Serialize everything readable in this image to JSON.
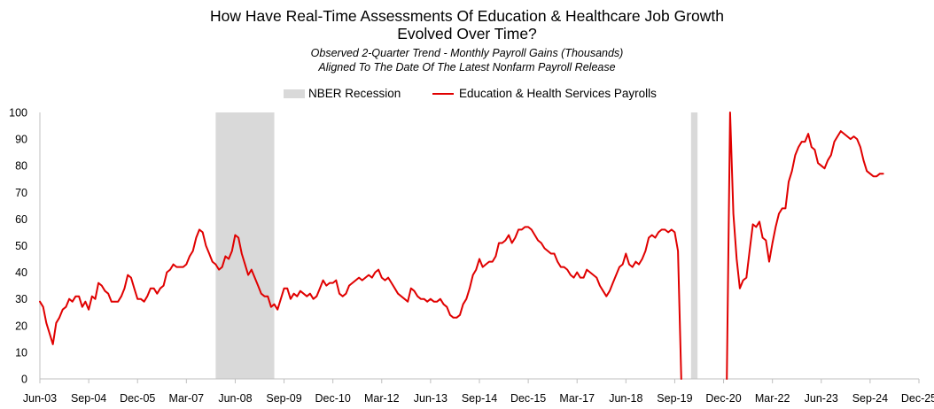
{
  "chart_data": {
    "type": "line",
    "title": [
      "How Have Real-Time Assessments Of Education & Healthcare Job Growth",
      "Evolved Over Time?"
    ],
    "subtitle": [
      "Observed 2-Quarter Trend - Monthly Payroll Gains (Thousands)",
      "Aligned To The Date Of The Latest Nonfarm Payroll Release"
    ],
    "legend": {
      "placement": "top-center",
      "items": [
        {
          "label": "NBER Recession",
          "kind": "shaded-area",
          "color": "#d9d9d9"
        },
        {
          "label": "Education & Health Services Payrolls",
          "kind": "line",
          "color": "#e00000"
        }
      ]
    },
    "y_axis": {
      "ylim": [
        0,
        100
      ],
      "ticks": [
        0,
        10,
        20,
        30,
        40,
        50,
        60,
        70,
        80,
        90,
        100
      ],
      "ylabel": ""
    },
    "x_axis": {
      "xlim": [
        "2003-06",
        "2025-12"
      ],
      "ticks": [
        {
          "date": "2003-06",
          "label": "Jun-03"
        },
        {
          "date": "2004-09",
          "label": "Sep-04"
        },
        {
          "date": "2005-12",
          "label": "Dec-05"
        },
        {
          "date": "2007-03",
          "label": "Mar-07"
        },
        {
          "date": "2008-06",
          "label": "Jun-08"
        },
        {
          "date": "2009-09",
          "label": "Sep-09"
        },
        {
          "date": "2010-12",
          "label": "Dec-10"
        },
        {
          "date": "2012-03",
          "label": "Mar-12"
        },
        {
          "date": "2013-06",
          "label": "Jun-13"
        },
        {
          "date": "2014-09",
          "label": "Sep-14"
        },
        {
          "date": "2015-12",
          "label": "Dec-15"
        },
        {
          "date": "2017-03",
          "label": "Mar-17"
        },
        {
          "date": "2018-06",
          "label": "Jun-18"
        },
        {
          "date": "2019-09",
          "label": "Sep-19"
        },
        {
          "date": "2020-12",
          "label": "Dec-20"
        },
        {
          "date": "2022-03",
          "label": "Mar-22"
        },
        {
          "date": "2023-06",
          "label": "Jun-23"
        },
        {
          "date": "2024-09",
          "label": "Sep-24"
        },
        {
          "date": "2025-12",
          "label": "Dec-25"
        }
      ],
      "xlabel": ""
    },
    "grid": false,
    "recessions": [
      {
        "start": "2007-12",
        "end": "2009-06"
      },
      {
        "start": "2020-02",
        "end": "2020-04"
      }
    ],
    "series": [
      {
        "name": "Education & Health Services Payrolls",
        "color": "#e00000",
        "points": [
          [
            "2003-06",
            29
          ],
          [
            "2003-07",
            27
          ],
          [
            "2003-08",
            21
          ],
          [
            "2003-09",
            17
          ],
          [
            "2003-10",
            13
          ],
          [
            "2003-11",
            21
          ],
          [
            "2003-12",
            23
          ],
          [
            "2004-01",
            26
          ],
          [
            "2004-02",
            27
          ],
          [
            "2004-03",
            30
          ],
          [
            "2004-04",
            29
          ],
          [
            "2004-05",
            31
          ],
          [
            "2004-06",
            31
          ],
          [
            "2004-07",
            27
          ],
          [
            "2004-08",
            29
          ],
          [
            "2004-09",
            26
          ],
          [
            "2004-10",
            31
          ],
          [
            "2004-11",
            30
          ],
          [
            "2004-12",
            36
          ],
          [
            "2005-01",
            35
          ],
          [
            "2005-02",
            33
          ],
          [
            "2005-03",
            32
          ],
          [
            "2005-04",
            29
          ],
          [
            "2005-05",
            29
          ],
          [
            "2005-06",
            29
          ],
          [
            "2005-07",
            31
          ],
          [
            "2005-08",
            34
          ],
          [
            "2005-09",
            39
          ],
          [
            "2005-10",
            38
          ],
          [
            "2005-11",
            34
          ],
          [
            "2005-12",
            30
          ],
          [
            "2006-01",
            30
          ],
          [
            "2006-02",
            29
          ],
          [
            "2006-03",
            31
          ],
          [
            "2006-04",
            34
          ],
          [
            "2006-05",
            34
          ],
          [
            "2006-06",
            32
          ],
          [
            "2006-07",
            34
          ],
          [
            "2006-08",
            35
          ],
          [
            "2006-09",
            40
          ],
          [
            "2006-10",
            41
          ],
          [
            "2006-11",
            43
          ],
          [
            "2006-12",
            42
          ],
          [
            "2007-01",
            42
          ],
          [
            "2007-02",
            42
          ],
          [
            "2007-03",
            43
          ],
          [
            "2007-04",
            46
          ],
          [
            "2007-05",
            48
          ],
          [
            "2007-06",
            53
          ],
          [
            "2007-07",
            56
          ],
          [
            "2007-08",
            55
          ],
          [
            "2007-09",
            50
          ],
          [
            "2007-10",
            47
          ],
          [
            "2007-11",
            44
          ],
          [
            "2007-12",
            43
          ],
          [
            "2008-01",
            41
          ],
          [
            "2008-02",
            42
          ],
          [
            "2008-03",
            46
          ],
          [
            "2008-04",
            45
          ],
          [
            "2008-05",
            48
          ],
          [
            "2008-06",
            54
          ],
          [
            "2008-07",
            53
          ],
          [
            "2008-08",
            47
          ],
          [
            "2008-09",
            43
          ],
          [
            "2008-10",
            39
          ],
          [
            "2008-11",
            41
          ],
          [
            "2008-12",
            38
          ],
          [
            "2009-01",
            35
          ],
          [
            "2009-02",
            32
          ],
          [
            "2009-03",
            31
          ],
          [
            "2009-04",
            31
          ],
          [
            "2009-05",
            27
          ],
          [
            "2009-06",
            28
          ],
          [
            "2009-07",
            26
          ],
          [
            "2009-08",
            30
          ],
          [
            "2009-09",
            34
          ],
          [
            "2009-10",
            34
          ],
          [
            "2009-11",
            30
          ],
          [
            "2009-12",
            32
          ],
          [
            "2010-01",
            31
          ],
          [
            "2010-02",
            33
          ],
          [
            "2010-03",
            32
          ],
          [
            "2010-04",
            31
          ],
          [
            "2010-05",
            32
          ],
          [
            "2010-06",
            30
          ],
          [
            "2010-07",
            31
          ],
          [
            "2010-08",
            34
          ],
          [
            "2010-09",
            37
          ],
          [
            "2010-10",
            35
          ],
          [
            "2010-11",
            36
          ],
          [
            "2010-12",
            36
          ],
          [
            "2011-01",
            37
          ],
          [
            "2011-02",
            32
          ],
          [
            "2011-03",
            31
          ],
          [
            "2011-04",
            32
          ],
          [
            "2011-05",
            35
          ],
          [
            "2011-06",
            36
          ],
          [
            "2011-07",
            37
          ],
          [
            "2011-08",
            38
          ],
          [
            "2011-09",
            37
          ],
          [
            "2011-10",
            38
          ],
          [
            "2011-11",
            39
          ],
          [
            "2011-12",
            38
          ],
          [
            "2012-01",
            40
          ],
          [
            "2012-02",
            41
          ],
          [
            "2012-03",
            38
          ],
          [
            "2012-04",
            37
          ],
          [
            "2012-05",
            38
          ],
          [
            "2012-06",
            36
          ],
          [
            "2012-07",
            34
          ],
          [
            "2012-08",
            32
          ],
          [
            "2012-09",
            31
          ],
          [
            "2012-10",
            30
          ],
          [
            "2012-11",
            29
          ],
          [
            "2012-12",
            34
          ],
          [
            "2013-01",
            33
          ],
          [
            "2013-02",
            31
          ],
          [
            "2013-03",
            30
          ],
          [
            "2013-04",
            30
          ],
          [
            "2013-05",
            29
          ],
          [
            "2013-06",
            30
          ],
          [
            "2013-07",
            29
          ],
          [
            "2013-08",
            29
          ],
          [
            "2013-09",
            30
          ],
          [
            "2013-10",
            28
          ],
          [
            "2013-11",
            27
          ],
          [
            "2013-12",
            24
          ],
          [
            "2014-01",
            23
          ],
          [
            "2014-02",
            23
          ],
          [
            "2014-03",
            24
          ],
          [
            "2014-04",
            28
          ],
          [
            "2014-05",
            30
          ],
          [
            "2014-06",
            34
          ],
          [
            "2014-07",
            39
          ],
          [
            "2014-08",
            41
          ],
          [
            "2014-09",
            45
          ],
          [
            "2014-10",
            42
          ],
          [
            "2014-11",
            43
          ],
          [
            "2014-12",
            44
          ],
          [
            "2015-01",
            44
          ],
          [
            "2015-02",
            46
          ],
          [
            "2015-03",
            51
          ],
          [
            "2015-04",
            51
          ],
          [
            "2015-05",
            52
          ],
          [
            "2015-06",
            54
          ],
          [
            "2015-07",
            51
          ],
          [
            "2015-08",
            53
          ],
          [
            "2015-09",
            56
          ],
          [
            "2015-10",
            56
          ],
          [
            "2015-11",
            57
          ],
          [
            "2015-12",
            57
          ],
          [
            "2016-01",
            56
          ],
          [
            "2016-02",
            54
          ],
          [
            "2016-03",
            52
          ],
          [
            "2016-04",
            51
          ],
          [
            "2016-05",
            49
          ],
          [
            "2016-06",
            48
          ],
          [
            "2016-07",
            47
          ],
          [
            "2016-08",
            47
          ],
          [
            "2016-09",
            44
          ],
          [
            "2016-10",
            42
          ],
          [
            "2016-11",
            42
          ],
          [
            "2016-12",
            41
          ],
          [
            "2017-01",
            39
          ],
          [
            "2017-02",
            38
          ],
          [
            "2017-03",
            40
          ],
          [
            "2017-04",
            38
          ],
          [
            "2017-05",
            38
          ],
          [
            "2017-06",
            41
          ],
          [
            "2017-07",
            40
          ],
          [
            "2017-08",
            39
          ],
          [
            "2017-09",
            38
          ],
          [
            "2017-10",
            35
          ],
          [
            "2017-11",
            33
          ],
          [
            "2017-12",
            31
          ],
          [
            "2018-01",
            33
          ],
          [
            "2018-02",
            36
          ],
          [
            "2018-03",
            39
          ],
          [
            "2018-04",
            42
          ],
          [
            "2018-05",
            43
          ],
          [
            "2018-06",
            47
          ],
          [
            "2018-07",
            43
          ],
          [
            "2018-08",
            42
          ],
          [
            "2018-09",
            44
          ],
          [
            "2018-10",
            43
          ],
          [
            "2018-11",
            45
          ],
          [
            "2018-12",
            48
          ],
          [
            "2019-01",
            53
          ],
          [
            "2019-02",
            54
          ],
          [
            "2019-03",
            53
          ],
          [
            "2019-04",
            55
          ],
          [
            "2019-05",
            56
          ],
          [
            "2019-06",
            56
          ],
          [
            "2019-07",
            55
          ],
          [
            "2019-08",
            56
          ],
          [
            "2019-09",
            55
          ],
          [
            "2019-10",
            48
          ],
          [
            "2019-11",
            0
          ],
          [
            "2019-12",
            null
          ],
          [
            "2020-12",
            null
          ],
          [
            "2021-01",
            0
          ],
          [
            "2021-02",
            100
          ],
          [
            "2021-03",
            62
          ],
          [
            "2021-04",
            45
          ],
          [
            "2021-05",
            34
          ],
          [
            "2021-06",
            37
          ],
          [
            "2021-07",
            38
          ],
          [
            "2021-08",
            48
          ],
          [
            "2021-09",
            58
          ],
          [
            "2021-10",
            57
          ],
          [
            "2021-11",
            59
          ],
          [
            "2021-12",
            53
          ],
          [
            "2022-01",
            52
          ],
          [
            "2022-02",
            44
          ],
          [
            "2022-03",
            51
          ],
          [
            "2022-04",
            57
          ],
          [
            "2022-05",
            62
          ],
          [
            "2022-06",
            64
          ],
          [
            "2022-07",
            64
          ],
          [
            "2022-08",
            74
          ],
          [
            "2022-09",
            78
          ],
          [
            "2022-10",
            84
          ],
          [
            "2022-11",
            87
          ],
          [
            "2022-12",
            89
          ],
          [
            "2023-01",
            89
          ],
          [
            "2023-02",
            92
          ],
          [
            "2023-03",
            87
          ],
          [
            "2023-04",
            86
          ],
          [
            "2023-05",
            81
          ],
          [
            "2023-06",
            80
          ],
          [
            "2023-07",
            79
          ],
          [
            "2023-08",
            82
          ],
          [
            "2023-09",
            84
          ],
          [
            "2023-10",
            89
          ],
          [
            "2023-11",
            91
          ],
          [
            "2023-12",
            93
          ],
          [
            "2024-01",
            92
          ],
          [
            "2024-02",
            91
          ],
          [
            "2024-03",
            90
          ],
          [
            "2024-04",
            91
          ],
          [
            "2024-05",
            90
          ],
          [
            "2024-06",
            87
          ],
          [
            "2024-07",
            82
          ],
          [
            "2024-08",
            78
          ],
          [
            "2024-09",
            77
          ],
          [
            "2024-10",
            76
          ],
          [
            "2024-11",
            76
          ],
          [
            "2024-12",
            77
          ],
          [
            "2025-01",
            77
          ]
        ]
      }
    ]
  }
}
